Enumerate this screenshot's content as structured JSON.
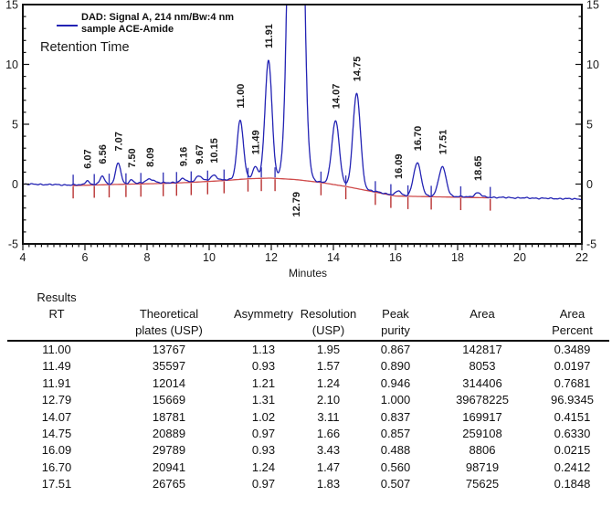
{
  "chart_data": {
    "type": "line",
    "title": "",
    "xlabel": "Minutes",
    "ylabel": "",
    "xlim": [
      4,
      22
    ],
    "ylim": [
      -5,
      15
    ],
    "x_ticks": [
      4,
      6,
      8,
      10,
      12,
      14,
      16,
      18,
      20,
      22
    ],
    "y_ticks": [
      -5,
      0,
      5,
      10,
      15
    ],
    "grid": false,
    "legend_position": "top-left",
    "legend": {
      "line1": "DAD: Signal A, 214 nm/Bw:4 nm",
      "line2": "sample ACE-Amide",
      "annotation": "Retention Time"
    },
    "colors": {
      "trace": "#2323b4",
      "baseline": "#cf4a4a",
      "mark_above": "#3b3bb8",
      "mark_below": "#b93333",
      "axis": "#1a1a1a"
    },
    "peaks": [
      {
        "label": "6.07",
        "rt": 6.07,
        "height": 0.35,
        "sigma": 0.06
      },
      {
        "label": "6.56",
        "rt": 6.56,
        "height": 0.7,
        "sigma": 0.07
      },
      {
        "label": "7.07",
        "rt": 7.07,
        "height": 1.76,
        "sigma": 0.08
      },
      {
        "label": "7.50",
        "rt": 7.5,
        "height": 0.3,
        "sigma": 0.07
      },
      {
        "label": "8.09",
        "rt": 8.09,
        "height": 0.35,
        "sigma": 0.13
      },
      {
        "label": "9.16",
        "rt": 9.16,
        "height": 0.3,
        "sigma": 0.08
      },
      {
        "label": "9.67",
        "rt": 9.67,
        "height": 0.45,
        "sigma": 0.1
      },
      {
        "label": "10.15",
        "rt": 10.15,
        "height": 0.45,
        "sigma": 0.1
      },
      {
        "label": "11.00",
        "rt": 11.0,
        "height": 4.9,
        "sigma": 0.1
      },
      {
        "label": "11.49",
        "rt": 11.49,
        "height": 0.95,
        "sigma": 0.08
      },
      {
        "label": "11.91",
        "rt": 11.91,
        "height": 9.8,
        "sigma": 0.11
      },
      {
        "label": "12.79",
        "rt": 12.79,
        "height": 70.0,
        "sigma": 0.17,
        "clipped": true,
        "label_below": true
      },
      {
        "label": "14.07",
        "rt": 14.07,
        "height": 5.3,
        "sigma": 0.12
      },
      {
        "label": "14.75",
        "rt": 14.75,
        "height": 7.9,
        "sigma": 0.12
      },
      {
        "label": "16.09",
        "rt": 16.09,
        "height": 0.4,
        "sigma": 0.08
      },
      {
        "label": "16.70",
        "rt": 16.7,
        "height": 2.75,
        "sigma": 0.12
      },
      {
        "label": "17.51",
        "rt": 17.51,
        "height": 2.45,
        "sigma": 0.12
      },
      {
        "label": "18.65",
        "rt": 18.65,
        "height": 0.35,
        "sigma": 0.1
      }
    ],
    "baseline_drift": [
      [
        4,
        0.0
      ],
      [
        5.6,
        -0.08
      ],
      [
        7,
        0.02
      ],
      [
        8.5,
        0.1
      ],
      [
        9.5,
        0.2
      ],
      [
        10.5,
        0.35
      ],
      [
        11.3,
        0.5
      ],
      [
        12.0,
        0.55
      ],
      [
        12.8,
        0.42
      ],
      [
        13.6,
        0.18
      ],
      [
        14.4,
        -0.15
      ],
      [
        15.3,
        -0.6
      ],
      [
        16.0,
        -0.95
      ],
      [
        17.0,
        -1.0
      ],
      [
        18.0,
        -1.05
      ],
      [
        19.0,
        -1.1
      ],
      [
        20.5,
        -1.18
      ],
      [
        22,
        -1.25
      ]
    ],
    "baseline_range": [
      5.6,
      19.0
    ],
    "integration_marks": [
      5.62,
      6.3,
      6.78,
      7.32,
      7.8,
      8.52,
      8.95,
      9.42,
      9.95,
      10.48,
      11.25,
      11.68,
      12.12,
      13.6,
      14.4,
      15.35,
      15.85,
      16.4,
      17.15,
      18.1,
      19.05
    ]
  },
  "table": {
    "title": "Results",
    "columns": [
      {
        "label": "RT",
        "sublabel": ""
      },
      {
        "label": "Theoretical",
        "sublabel": "plates (USP)"
      },
      {
        "label": "Asymmetry",
        "sublabel": ""
      },
      {
        "label": "Resolution",
        "sublabel": "(USP)"
      },
      {
        "label": "Peak",
        "sublabel": "purity"
      },
      {
        "label": "Area",
        "sublabel": ""
      },
      {
        "label": "Area",
        "sublabel": "Percent"
      }
    ],
    "rows": [
      [
        "11.00",
        "13767",
        "1.13",
        "1.95",
        "0.867",
        "142817",
        "0.3489"
      ],
      [
        "11.49",
        "35597",
        "0.93",
        "1.57",
        "0.890",
        "8053",
        "0.0197"
      ],
      [
        "11.91",
        "12014",
        "1.21",
        "1.24",
        "0.946",
        "314406",
        "0.7681"
      ],
      [
        "12.79",
        "15669",
        "1.31",
        "2.10",
        "1.000",
        "39678225",
        "96.9345"
      ],
      [
        "14.07",
        "18781",
        "1.02",
        "3.11",
        "0.837",
        "169917",
        "0.4151"
      ],
      [
        "14.75",
        "20889",
        "0.97",
        "1.66",
        "0.857",
        "259108",
        "0.6330"
      ],
      [
        "16.09",
        "29789",
        "0.93",
        "3.43",
        "0.488",
        "8806",
        "0.0215"
      ],
      [
        "16.70",
        "20941",
        "1.24",
        "1.47",
        "0.560",
        "98719",
        "0.2412"
      ],
      [
        "17.51",
        "26765",
        "0.97",
        "1.83",
        "0.507",
        "75625",
        "0.1848"
      ]
    ]
  }
}
